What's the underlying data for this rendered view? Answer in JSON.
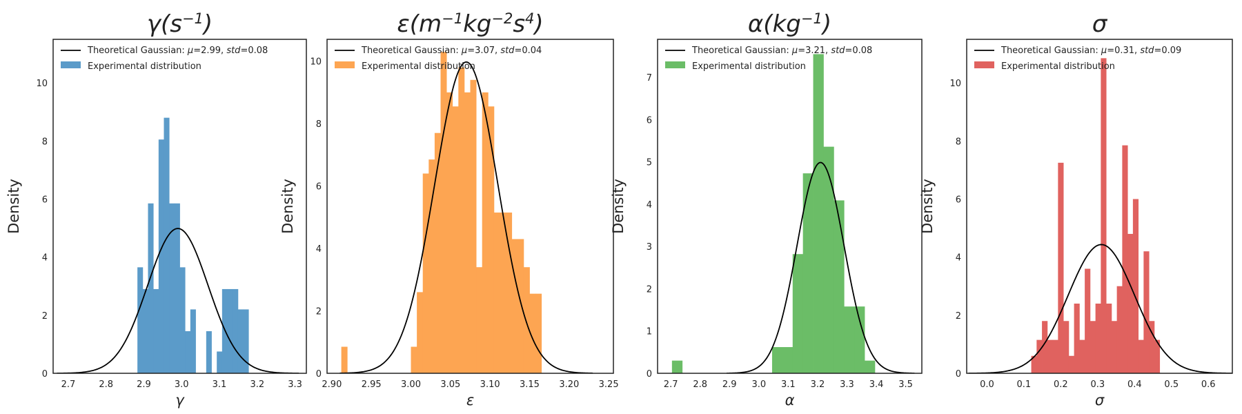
{
  "chart_data": [
    {
      "type": "bar",
      "title": "γ(s⁻¹)",
      "title_parts": [
        {
          "t": "γ("
        },
        {
          "t": "s"
        },
        {
          "t": "−1",
          "sup": true
        },
        {
          "t": ")"
        }
      ],
      "xlabel": "γ",
      "ylabel": "Density",
      "xlim": [
        2.66,
        3.33
      ],
      "ylim": [
        0,
        11.5
      ],
      "xticks": [
        "2.7",
        "2.8",
        "2.9",
        "3.0",
        "3.1",
        "3.2",
        "3.3"
      ],
      "yticks": [
        "0",
        "2",
        "4",
        "6",
        "8",
        "10"
      ],
      "color": "#5b9bc9",
      "legend": {
        "line_label": "Theoretical Gaussian: ",
        "mu": "2.99",
        "std": "0.08",
        "bar_label": "Experimental distribution",
        "position": "top-left"
      },
      "gaussian": {
        "mu": 2.99,
        "std": 0.08
      },
      "bins": [
        {
          "x0": 2.883,
          "x1": 2.897,
          "h": 3.65
        },
        {
          "x0": 2.897,
          "x1": 2.911,
          "h": 2.9
        },
        {
          "x0": 2.911,
          "x1": 2.925,
          "h": 5.85
        },
        {
          "x0": 2.925,
          "x1": 2.939,
          "h": 2.9
        },
        {
          "x0": 2.939,
          "x1": 2.953,
          "h": 8.05
        },
        {
          "x0": 2.953,
          "x1": 2.967,
          "h": 8.8
        },
        {
          "x0": 2.967,
          "x1": 2.981,
          "h": 5.85
        },
        {
          "x0": 2.981,
          "x1": 2.995,
          "h": 5.85
        },
        {
          "x0": 2.995,
          "x1": 3.009,
          "h": 3.65
        },
        {
          "x0": 3.009,
          "x1": 3.023,
          "h": 1.45
        },
        {
          "x0": 3.023,
          "x1": 3.037,
          "h": 2.2
        },
        {
          "x0": 3.065,
          "x1": 3.079,
          "h": 1.45
        },
        {
          "x0": 3.093,
          "x1": 3.107,
          "h": 0.75
        },
        {
          "x0": 3.107,
          "x1": 3.121,
          "h": 2.9
        },
        {
          "x0": 3.121,
          "x1": 3.135,
          "h": 2.9
        },
        {
          "x0": 3.135,
          "x1": 3.149,
          "h": 2.9
        },
        {
          "x0": 3.149,
          "x1": 3.163,
          "h": 2.2
        },
        {
          "x0": 3.163,
          "x1": 3.177,
          "h": 2.2
        }
      ]
    },
    {
      "type": "bar",
      "title": "ε(m⁻¹kg⁻²s⁴)",
      "title_parts": [
        {
          "t": "ε("
        },
        {
          "t": "m"
        },
        {
          "t": "−1",
          "sup": true
        },
        {
          "t": "kg"
        },
        {
          "t": "−2",
          "sup": true
        },
        {
          "t": "s"
        },
        {
          "t": "4",
          "sup": true
        },
        {
          "t": ")"
        }
      ],
      "xlabel": "ε",
      "ylabel": "Density",
      "xlim": [
        2.894,
        3.256
      ],
      "ylim": [
        0,
        10.7
      ],
      "xticks": [
        "2.90",
        "2.95",
        "3.00",
        "3.05",
        "3.10",
        "3.15",
        "3.20",
        "3.25"
      ],
      "yticks": [
        "0",
        "2",
        "4",
        "6",
        "8",
        "10"
      ],
      "color": "#fda552",
      "legend": {
        "line_label": "Theoretical Gaussian: ",
        "mu": "3.07",
        "std": "0.04",
        "bar_label": "Experimental distribution",
        "position": "top-left"
      },
      "gaussian": {
        "mu": 3.07,
        "std": 0.04
      },
      "bins": [
        {
          "x0": 2.912,
          "x1": 2.9195,
          "h": 0.85
        },
        {
          "x0": 3.0,
          "x1": 3.0075,
          "h": 0.85
        },
        {
          "x0": 3.0075,
          "x1": 3.015,
          "h": 2.6
        },
        {
          "x0": 3.015,
          "x1": 3.0225,
          "h": 6.4
        },
        {
          "x0": 3.0225,
          "x1": 3.03,
          "h": 6.85
        },
        {
          "x0": 3.03,
          "x1": 3.0375,
          "h": 7.7
        },
        {
          "x0": 3.0375,
          "x1": 3.045,
          "h": 10.3
        },
        {
          "x0": 3.045,
          "x1": 3.0525,
          "h": 9.0
        },
        {
          "x0": 3.0525,
          "x1": 3.06,
          "h": 8.55
        },
        {
          "x0": 3.06,
          "x1": 3.0675,
          "h": 9.8
        },
        {
          "x0": 3.0675,
          "x1": 3.075,
          "h": 9.0
        },
        {
          "x0": 3.075,
          "x1": 3.0825,
          "h": 9.4
        },
        {
          "x0": 3.0825,
          "x1": 3.09,
          "h": 3.4
        },
        {
          "x0": 3.09,
          "x1": 3.0975,
          "h": 9.0
        },
        {
          "x0": 3.0975,
          "x1": 3.105,
          "h": 8.55
        },
        {
          "x0": 3.105,
          "x1": 3.1125,
          "h": 5.15
        },
        {
          "x0": 3.1125,
          "x1": 3.12,
          "h": 5.15
        },
        {
          "x0": 3.12,
          "x1": 3.1275,
          "h": 5.15
        },
        {
          "x0": 3.1275,
          "x1": 3.135,
          "h": 4.3
        },
        {
          "x0": 3.135,
          "x1": 3.1425,
          "h": 4.3
        },
        {
          "x0": 3.1425,
          "x1": 3.15,
          "h": 3.4
        },
        {
          "x0": 3.15,
          "x1": 3.1575,
          "h": 2.55
        },
        {
          "x0": 3.1575,
          "x1": 3.165,
          "h": 2.55
        }
      ]
    },
    {
      "type": "bar",
      "title": "α(kg⁻¹)",
      "title_parts": [
        {
          "t": "α("
        },
        {
          "t": "kg"
        },
        {
          "t": "−1",
          "sup": true
        },
        {
          "t": ")"
        }
      ],
      "xlabel": "α",
      "ylabel": "Density",
      "xlim": [
        2.655,
        3.555
      ],
      "ylim": [
        0,
        7.9
      ],
      "xticks": [
        "2.7",
        "2.8",
        "2.9",
        "3.0",
        "3.1",
        "3.2",
        "3.3",
        "3.4",
        "3.5"
      ],
      "yticks": [
        "0",
        "1",
        "2",
        "3",
        "4",
        "5",
        "6",
        "7"
      ],
      "color": "#6bbd67",
      "legend": {
        "line_label": "Theoretical Gaussian: ",
        "mu": "3.21",
        "std": "0.08",
        "bar_label": "Experimental distribution",
        "position": "top-left"
      },
      "gaussian": {
        "mu": 3.21,
        "std": 0.08
      },
      "bins": [
        {
          "x0": 2.704,
          "x1": 2.739,
          "h": 0.3
        },
        {
          "x0": 3.045,
          "x1": 3.08,
          "h": 0.62
        },
        {
          "x0": 3.08,
          "x1": 3.115,
          "h": 0.62
        },
        {
          "x0": 3.115,
          "x1": 3.15,
          "h": 2.82
        },
        {
          "x0": 3.15,
          "x1": 3.185,
          "h": 4.73
        },
        {
          "x0": 3.185,
          "x1": 3.22,
          "h": 7.55
        },
        {
          "x0": 3.22,
          "x1": 3.255,
          "h": 5.36
        },
        {
          "x0": 3.255,
          "x1": 3.29,
          "h": 4.09
        },
        {
          "x0": 3.29,
          "x1": 3.325,
          "h": 1.58
        },
        {
          "x0": 3.325,
          "x1": 3.36,
          "h": 1.58
        },
        {
          "x0": 3.36,
          "x1": 3.395,
          "h": 0.3
        }
      ]
    },
    {
      "type": "bar",
      "title": "σ",
      "title_parts": [
        {
          "t": "σ"
        }
      ],
      "xlabel": "σ",
      "ylabel": "Density",
      "xlim": [
        -0.055,
        0.665
      ],
      "ylim": [
        0,
        11.5
      ],
      "xticks": [
        "0.0",
        "0.1",
        "0.2",
        "0.3",
        "0.4",
        "0.5",
        "0.6"
      ],
      "yticks": [
        "0",
        "2",
        "4",
        "6",
        "8",
        "10"
      ],
      "color": "#e0625f",
      "legend": {
        "line_label": "Theoretical Gaussian: ",
        "mu": "0.31",
        "std": "0.09",
        "bar_label": "Experimental distribution",
        "position": "top-left"
      },
      "gaussian": {
        "mu": 0.31,
        "std": 0.09
      },
      "bins": [
        {
          "x0": 0.12,
          "x1": 0.1345,
          "h": 0.6
        },
        {
          "x0": 0.1345,
          "x1": 0.149,
          "h": 1.15
        },
        {
          "x0": 0.149,
          "x1": 0.1635,
          "h": 1.8
        },
        {
          "x0": 0.1635,
          "x1": 0.178,
          "h": 1.15
        },
        {
          "x0": 0.178,
          "x1": 0.1925,
          "h": 1.15
        },
        {
          "x0": 0.1925,
          "x1": 0.207,
          "h": 7.25
        },
        {
          "x0": 0.207,
          "x1": 0.2215,
          "h": 1.8
        },
        {
          "x0": 0.2215,
          "x1": 0.236,
          "h": 0.6
        },
        {
          "x0": 0.236,
          "x1": 0.2505,
          "h": 2.4
        },
        {
          "x0": 0.2505,
          "x1": 0.265,
          "h": 1.15
        },
        {
          "x0": 0.265,
          "x1": 0.2795,
          "h": 3.6
        },
        {
          "x0": 0.2795,
          "x1": 0.294,
          "h": 1.8
        },
        {
          "x0": 0.294,
          "x1": 0.3085,
          "h": 2.4
        },
        {
          "x0": 0.3085,
          "x1": 0.323,
          "h": 10.85
        },
        {
          "x0": 0.323,
          "x1": 0.3375,
          "h": 2.4
        },
        {
          "x0": 0.3375,
          "x1": 0.352,
          "h": 1.8
        },
        {
          "x0": 0.352,
          "x1": 0.3665,
          "h": 3.0
        },
        {
          "x0": 0.3665,
          "x1": 0.381,
          "h": 7.85
        },
        {
          "x0": 0.381,
          "x1": 0.3955,
          "h": 4.8
        },
        {
          "x0": 0.3955,
          "x1": 0.41,
          "h": 6.0
        },
        {
          "x0": 0.41,
          "x1": 0.4245,
          "h": 1.15
        },
        {
          "x0": 0.4245,
          "x1": 0.439,
          "h": 4.2
        },
        {
          "x0": 0.439,
          "x1": 0.4535,
          "h": 1.8
        },
        {
          "x0": 0.4535,
          "x1": 0.468,
          "h": 1.15
        }
      ]
    }
  ]
}
